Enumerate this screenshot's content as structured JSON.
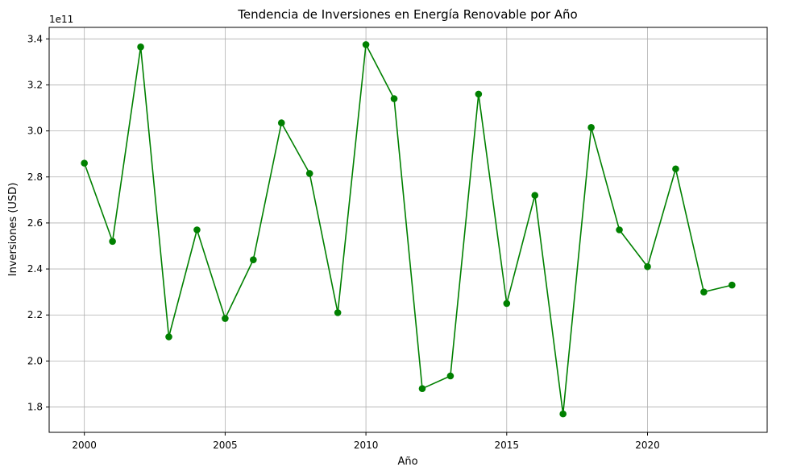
{
  "chart_data": {
    "type": "line",
    "title": "Tendencia de Inversiones en Energía Renovable por Año",
    "xlabel": "Año",
    "ylabel": "Inversiones (USD)",
    "y_offset_label": "1e11",
    "x": [
      2000,
      2001,
      2002,
      2003,
      2004,
      2005,
      2006,
      2007,
      2008,
      2009,
      2010,
      2011,
      2012,
      2013,
      2014,
      2015,
      2016,
      2017,
      2018,
      2019,
      2020,
      2021,
      2022,
      2023
    ],
    "series": [
      {
        "values": [
          286000000000,
          252000000000,
          336500000000,
          210500000000,
          257000000000,
          218500000000,
          244000000000,
          303500000000,
          281500000000,
          221000000000,
          337500000000,
          314000000000,
          188000000000,
          193500000000,
          316000000000,
          225000000000,
          272000000000,
          177000000000,
          301500000000,
          257000000000,
          241000000000,
          283500000000,
          230000000000,
          233000000000
        ],
        "color": "#008000"
      }
    ],
    "xlim": [
      1998.75,
      2024.25
    ],
    "ylim": [
      169000000000,
      345000000000
    ],
    "x_ticks": [
      2000,
      2005,
      2010,
      2015,
      2020
    ],
    "x_tick_labels": [
      "2000",
      "2005",
      "2010",
      "2015",
      "2020"
    ],
    "y_ticks": [
      180000000000,
      200000000000,
      220000000000,
      240000000000,
      260000000000,
      280000000000,
      300000000000,
      320000000000,
      340000000000
    ],
    "y_tick_labels": [
      "1.8",
      "2.0",
      "2.2",
      "2.4",
      "2.6",
      "2.8",
      "3.0",
      "3.2",
      "3.4"
    ],
    "grid": true,
    "marker": "circle"
  }
}
